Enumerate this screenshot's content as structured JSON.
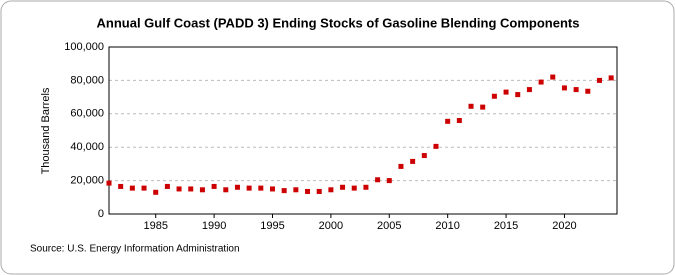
{
  "chart_data": {
    "type": "scatter",
    "title": "Annual Gulf Coast (PADD 3) Ending Stocks of Gasoline Blending Components",
    "y_label": "Thousand Barrels",
    "source": "Source: U.S. Energy Information Administration",
    "x": [
      1981,
      1982,
      1983,
      1984,
      1985,
      1986,
      1987,
      1988,
      1989,
      1990,
      1991,
      1992,
      1993,
      1994,
      1995,
      1996,
      1997,
      1998,
      1999,
      2000,
      2001,
      2002,
      2003,
      2004,
      2005,
      2006,
      2007,
      2008,
      2009,
      2010,
      2011,
      2012,
      2013,
      2014,
      2015,
      2016,
      2017,
      2018,
      2019,
      2020,
      2021,
      2022,
      2023,
      2024
    ],
    "values": [
      18500,
      16500,
      15500,
      15500,
      13000,
      16500,
      15000,
      15000,
      14500,
      16500,
      14500,
      16000,
      15500,
      15500,
      15000,
      14000,
      14500,
      13500,
      13500,
      14500,
      16000,
      15500,
      16000,
      20500,
      20000,
      28500,
      31500,
      35000,
      40500,
      55500,
      56000,
      64500,
      64000,
      70500,
      73000,
      71500,
      74500,
      79000,
      82000,
      75500,
      74500,
      73500,
      80000,
      81500
    ],
    "color": "#cc0000",
    "xlim": [
      1981,
      2024.5
    ],
    "xticks": [
      1985,
      1990,
      1995,
      2000,
      2005,
      2010,
      2015,
      2020
    ],
    "ylim": [
      0,
      100000
    ],
    "yticks": [
      0,
      {
        "value": 20000,
        "label": "20,000"
      },
      {
        "value": 40000,
        "label": "40,000"
      },
      {
        "value": 60000,
        "label": "60,000"
      },
      {
        "value": 80000,
        "label": "80,000"
      },
      {
        "value": 100000,
        "label": "100,000"
      }
    ],
    "grid": true
  }
}
